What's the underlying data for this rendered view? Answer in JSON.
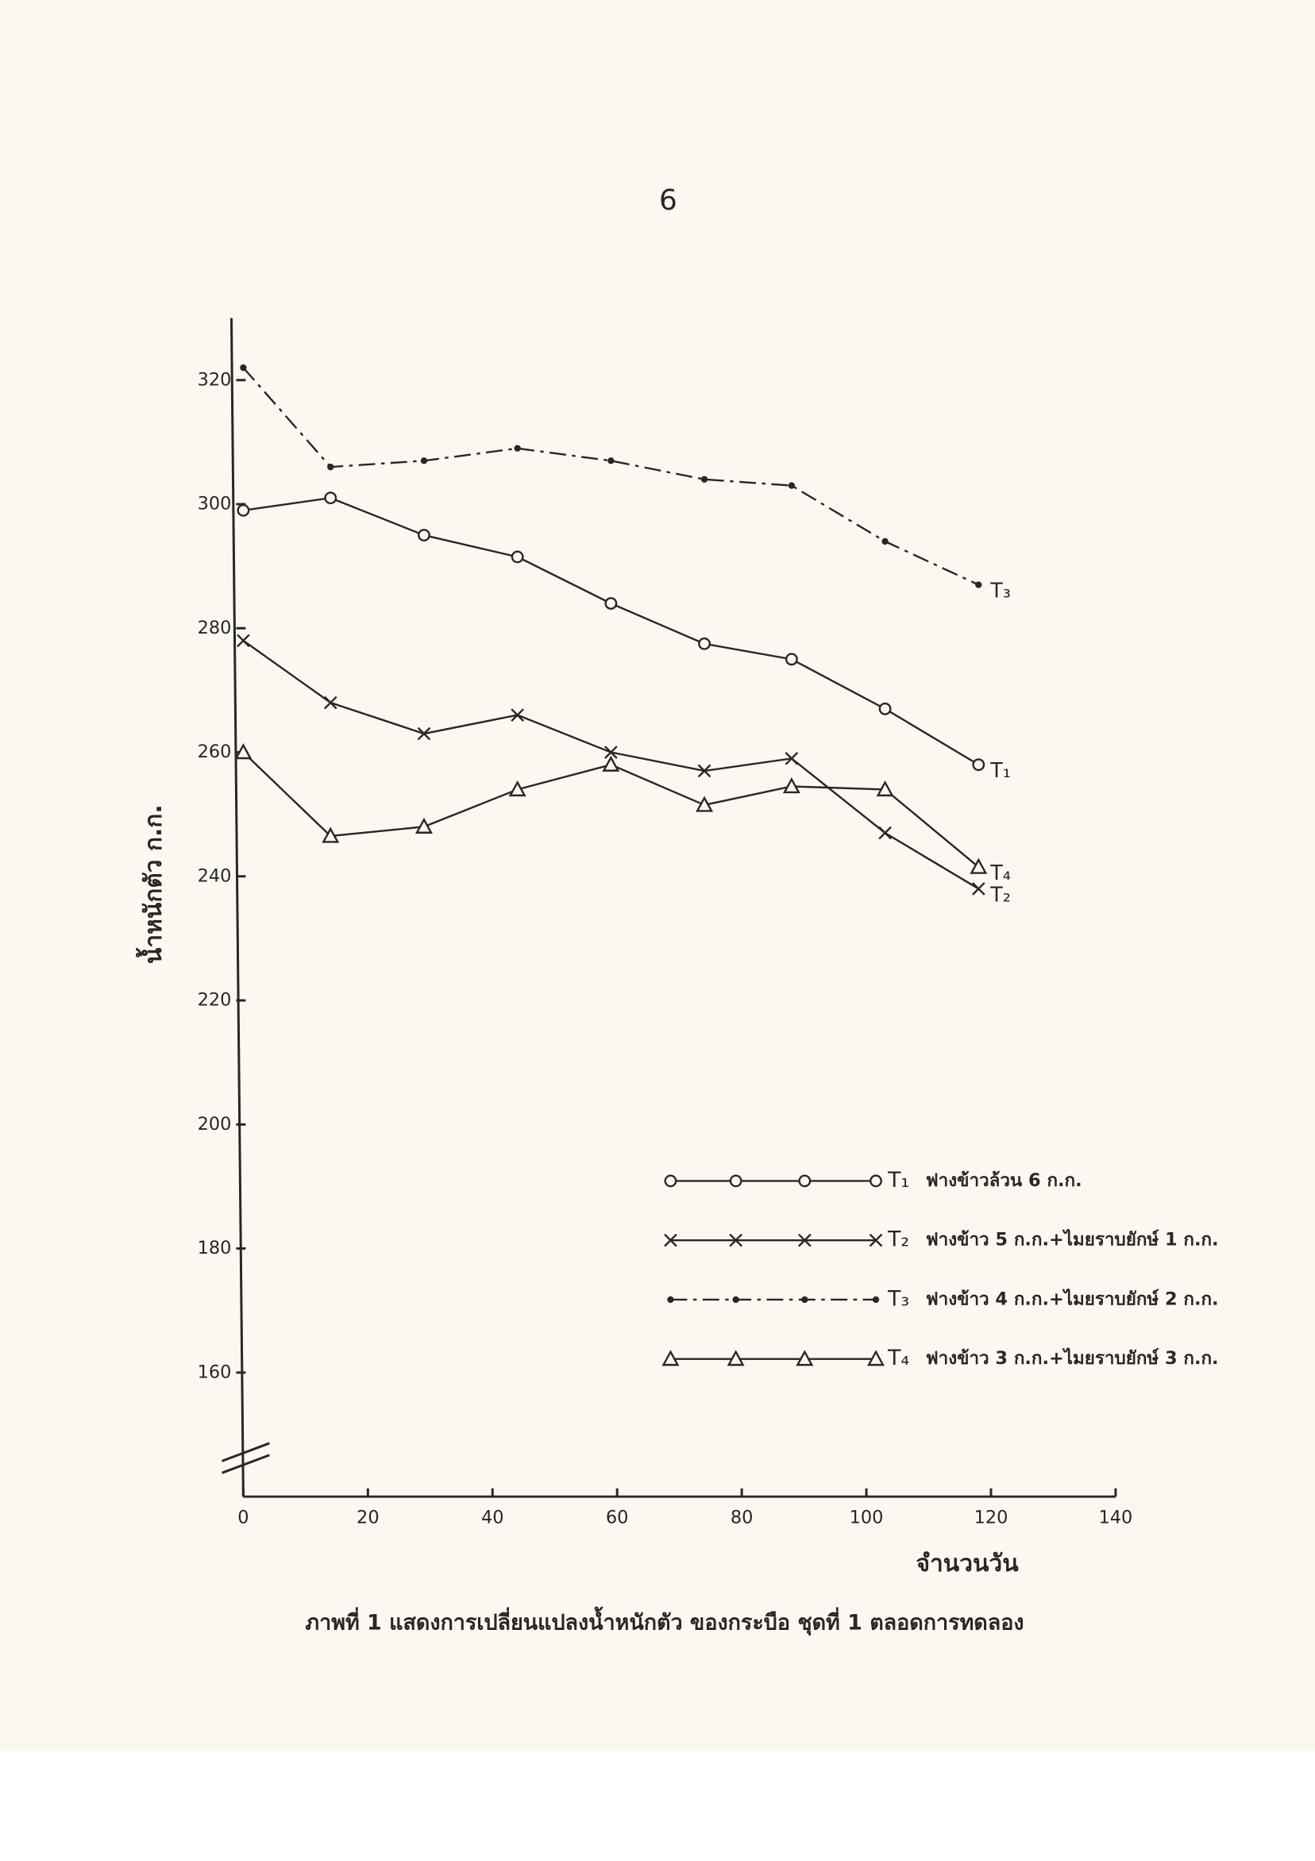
{
  "page_number": "6",
  "chart_data": {
    "type": "line",
    "x_label": "จำนวนวัน",
    "y_label": "น้ำหนักตัว ก.ก.",
    "caption": "ภาพที่ 1 แสดงการเปลี่ยนแปลงน้ำหนักตัว ของกระบือ ชุดที่ 1 ตลอดการทดลอง",
    "x": [
      0,
      14,
      29,
      44,
      59,
      74,
      88,
      103,
      118
    ],
    "xlim": [
      0,
      140
    ],
    "xticks": [
      0,
      20,
      40,
      60,
      80,
      100,
      120,
      140
    ],
    "ylim": [
      140,
      330
    ],
    "yticks": [
      160,
      180,
      200,
      220,
      240,
      260,
      280,
      300,
      320
    ],
    "axis_break": true,
    "series": [
      {
        "name": "T₁",
        "description": "ฟางข้าวล้วน 6 ก.ก.",
        "color": "#2a2622",
        "marker": "circle",
        "line_style": "solid",
        "values": [
          299,
          301,
          295,
          291.5,
          284,
          277.5,
          275,
          267,
          258
        ]
      },
      {
        "name": "T₂",
        "description": "ฟางข้าว 5 ก.ก.+ไมยราบยักษ์ 1 ก.ก.",
        "color": "#2a2622",
        "marker": "x",
        "line_style": "solid",
        "values": [
          278,
          268,
          263,
          266,
          260,
          257,
          259,
          247,
          238
        ]
      },
      {
        "name": "T₃",
        "description": "ฟางข้าว 4 ก.ก.+ไมยราบยักษ์ 2 ก.ก.",
        "color": "#2a2622",
        "marker": "dot",
        "line_style": "dashdot",
        "values": [
          322,
          306,
          307,
          309,
          307,
          304,
          303,
          294,
          287
        ]
      },
      {
        "name": "T₄",
        "description": "ฟางข้าว 3 ก.ก.+ไมยราบยักษ์ 3 ก.ก.",
        "color": "#2a2622",
        "marker": "triangle",
        "line_style": "solid",
        "values": [
          260,
          246.5,
          248,
          254,
          258,
          251.5,
          254.5,
          254,
          241.5
        ]
      }
    ]
  }
}
